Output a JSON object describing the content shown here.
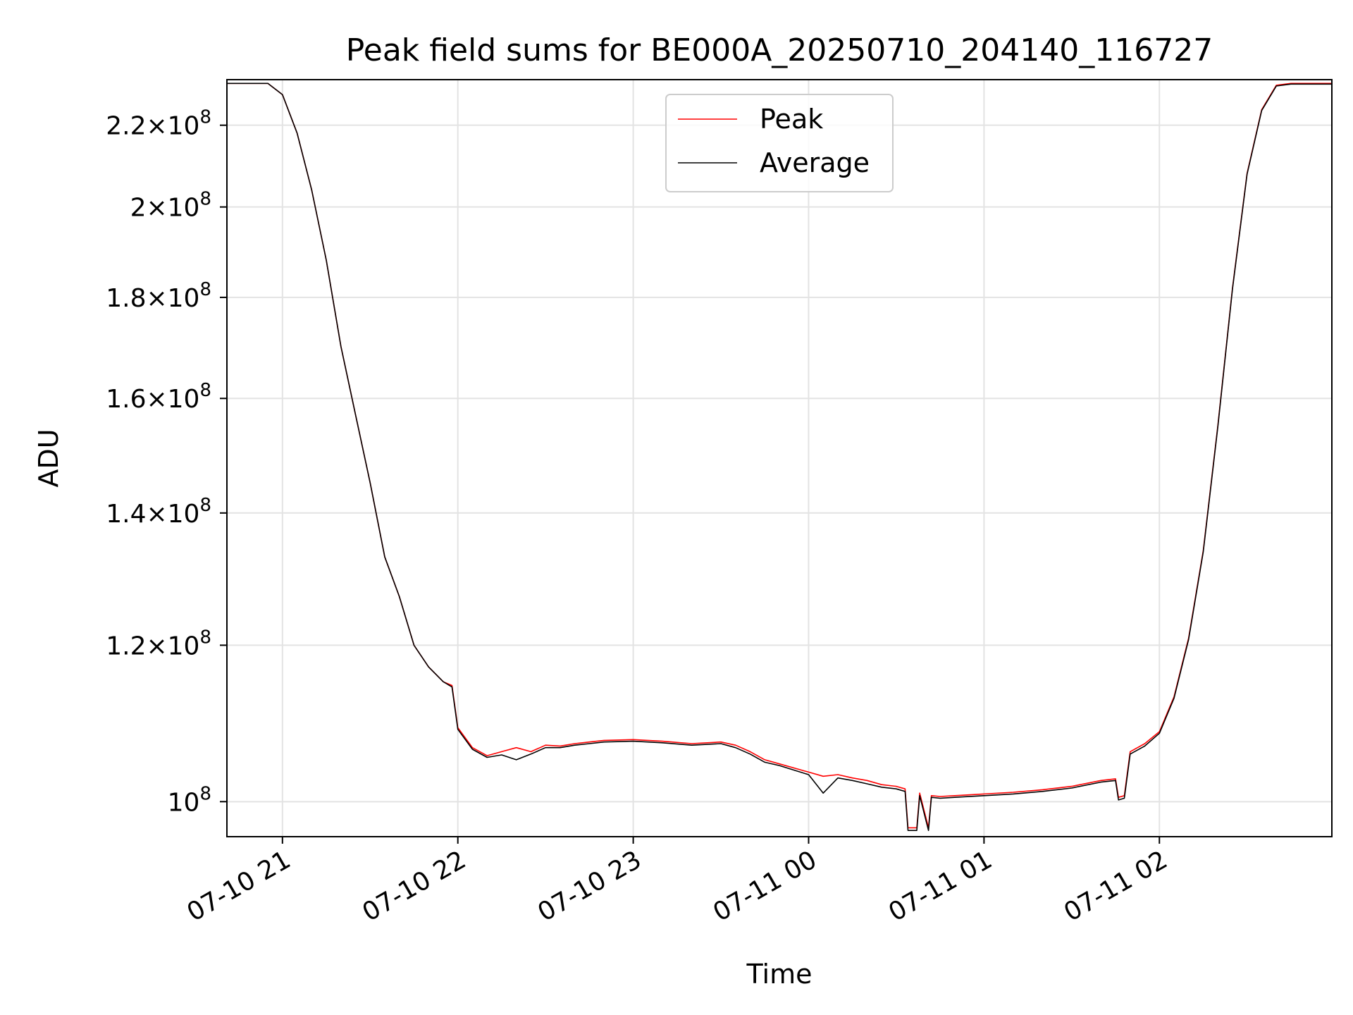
{
  "chart_data": {
    "type": "line",
    "title": "Peak field sums for BE000A_20250710_204140_116727",
    "xlabel": "Time",
    "ylabel": "ADU",
    "y_scale": "log",
    "grid": true,
    "legend_placement": "top-center",
    "x_tick_labels": [
      "07-10 21",
      "07-10 22",
      "07-10 23",
      "07-11 00",
      "07-11 01",
      "07-11 02"
    ],
    "y_ticks": [
      {
        "value": 100000000,
        "mantissa": "",
        "exponent": "8"
      },
      {
        "value": 120000000,
        "mantissa": "1.2",
        "exponent": "8"
      },
      {
        "value": 140000000,
        "mantissa": "1.4",
        "exponent": "8"
      },
      {
        "value": 160000000,
        "mantissa": "1.6",
        "exponent": "8"
      },
      {
        "value": 180000000,
        "mantissa": "1.8",
        "exponent": "8"
      },
      {
        "value": 200000000,
        "mantissa": "2",
        "exponent": "8"
      },
      {
        "value": 220000000,
        "mantissa": "2.2",
        "exponent": "8"
      }
    ],
    "xlim": [
      "2025-07-10 20:41",
      "2025-07-11 02:59"
    ],
    "ylim": [
      96000000,
      232000000
    ],
    "series": [
      {
        "name": "Peak",
        "color": "#ff0000",
        "x": [
          "2025-07-10 20:41",
          "2025-07-10 20:55",
          "2025-07-10 21:00",
          "2025-07-10 21:05",
          "2025-07-10 21:10",
          "2025-07-10 21:15",
          "2025-07-10 21:20",
          "2025-07-10 21:25",
          "2025-07-10 21:30",
          "2025-07-10 21:35",
          "2025-07-10 21:40",
          "2025-07-10 21:45",
          "2025-07-10 21:50",
          "2025-07-10 21:55",
          "2025-07-10 21:58",
          "2025-07-10 22:00",
          "2025-07-10 22:05",
          "2025-07-10 22:10",
          "2025-07-10 22:15",
          "2025-07-10 22:20",
          "2025-07-10 22:25",
          "2025-07-10 22:30",
          "2025-07-10 22:35",
          "2025-07-10 22:40",
          "2025-07-10 22:45",
          "2025-07-10 22:50",
          "2025-07-10 23:00",
          "2025-07-10 23:10",
          "2025-07-10 23:20",
          "2025-07-10 23:30",
          "2025-07-10 23:35",
          "2025-07-10 23:40",
          "2025-07-10 23:45",
          "2025-07-10 23:50",
          "2025-07-11 00:00",
          "2025-07-11 00:05",
          "2025-07-11 00:10",
          "2025-07-11 00:15",
          "2025-07-11 00:20",
          "2025-07-11 00:25",
          "2025-07-11 00:30",
          "2025-07-11 00:33",
          "2025-07-11 00:34",
          "2025-07-11 00:37",
          "2025-07-11 00:38",
          "2025-07-11 00:41",
          "2025-07-11 00:42",
          "2025-07-11 00:45",
          "2025-07-11 00:50",
          "2025-07-11 01:00",
          "2025-07-11 01:10",
          "2025-07-11 01:20",
          "2025-07-11 01:30",
          "2025-07-11 01:40",
          "2025-07-11 01:45",
          "2025-07-11 01:46",
          "2025-07-11 01:48",
          "2025-07-11 01:50",
          "2025-07-11 01:55",
          "2025-07-11 02:00",
          "2025-07-11 02:05",
          "2025-07-11 02:10",
          "2025-07-11 02:15",
          "2025-07-11 02:20",
          "2025-07-11 02:25",
          "2025-07-11 02:30",
          "2025-07-11 02:35",
          "2025-07-11 02:40",
          "2025-07-11 02:45",
          "2025-07-11 02:50",
          "2025-07-11 02:59"
        ],
        "values": [
          231000000,
          231000000,
          228000000,
          218000000,
          204000000,
          188000000,
          170000000,
          157000000,
          145000000,
          133000000,
          127000000,
          120000000,
          117000000,
          115000000,
          114500000,
          109000000,
          106500000,
          105500000,
          106000000,
          106500000,
          106000000,
          106800000,
          106700000,
          107000000,
          107200000,
          107400000,
          107500000,
          107300000,
          107000000,
          107200000,
          106800000,
          106000000,
          105000000,
          104500000,
          103500000,
          103000000,
          103200000,
          102800000,
          102500000,
          102000000,
          101800000,
          101500000,
          97000000,
          97000000,
          101000000,
          97000000,
          100700000,
          100600000,
          100700000,
          100900000,
          101100000,
          101400000,
          101800000,
          102500000,
          102700000,
          100500000,
          100700000,
          106000000,
          107000000,
          108500000,
          113000000,
          121000000,
          134000000,
          155000000,
          182000000,
          208000000,
          224000000,
          230500000,
          231000000,
          231000000,
          231000000
        ]
      },
      {
        "name": "Average",
        "color": "#000000",
        "x": [
          "2025-07-10 20:41",
          "2025-07-10 20:55",
          "2025-07-10 21:00",
          "2025-07-10 21:05",
          "2025-07-10 21:10",
          "2025-07-10 21:15",
          "2025-07-10 21:20",
          "2025-07-10 21:25",
          "2025-07-10 21:30",
          "2025-07-10 21:35",
          "2025-07-10 21:40",
          "2025-07-10 21:45",
          "2025-07-10 21:50",
          "2025-07-10 21:55",
          "2025-07-10 21:58",
          "2025-07-10 22:00",
          "2025-07-10 22:05",
          "2025-07-10 22:10",
          "2025-07-10 22:15",
          "2025-07-10 22:20",
          "2025-07-10 22:25",
          "2025-07-10 22:30",
          "2025-07-10 22:35",
          "2025-07-10 22:40",
          "2025-07-10 22:45",
          "2025-07-10 22:50",
          "2025-07-10 23:00",
          "2025-07-10 23:10",
          "2025-07-10 23:20",
          "2025-07-10 23:30",
          "2025-07-10 23:35",
          "2025-07-10 23:40",
          "2025-07-10 23:45",
          "2025-07-10 23:50",
          "2025-07-11 00:00",
          "2025-07-11 00:05",
          "2025-07-11 00:10",
          "2025-07-11 00:15",
          "2025-07-11 00:20",
          "2025-07-11 00:25",
          "2025-07-11 00:30",
          "2025-07-11 00:33",
          "2025-07-11 00:34",
          "2025-07-11 00:37",
          "2025-07-11 00:38",
          "2025-07-11 00:41",
          "2025-07-11 00:42",
          "2025-07-11 00:45",
          "2025-07-11 00:50",
          "2025-07-11 01:00",
          "2025-07-11 01:10",
          "2025-07-11 01:20",
          "2025-07-11 01:30",
          "2025-07-11 01:40",
          "2025-07-11 01:45",
          "2025-07-11 01:46",
          "2025-07-11 01:48",
          "2025-07-11 01:50",
          "2025-07-11 01:55",
          "2025-07-11 02:00",
          "2025-07-11 02:05",
          "2025-07-11 02:10",
          "2025-07-11 02:15",
          "2025-07-11 02:20",
          "2025-07-11 02:25",
          "2025-07-11 02:30",
          "2025-07-11 02:35",
          "2025-07-11 02:40",
          "2025-07-11 02:45",
          "2025-07-11 02:50",
          "2025-07-11 02:59"
        ],
        "values": [
          231000000,
          231000000,
          228000000,
          218000000,
          204000000,
          188000000,
          170000000,
          157000000,
          145000000,
          133000000,
          127000000,
          120000000,
          117000000,
          115000000,
          114300000,
          108800000,
          106300000,
          105300000,
          105600000,
          105000000,
          105700000,
          106500000,
          106500000,
          106800000,
          107000000,
          107200000,
          107300000,
          107100000,
          106800000,
          107000000,
          106500000,
          105700000,
          104700000,
          104300000,
          103200000,
          101000000,
          102800000,
          102500000,
          102100000,
          101700000,
          101500000,
          101200000,
          96700000,
          96700000,
          100700000,
          96700000,
          100500000,
          100400000,
          100500000,
          100700000,
          100900000,
          101200000,
          101600000,
          102300000,
          102500000,
          100200000,
          100400000,
          105700000,
          106700000,
          108300000,
          112800000,
          120800000,
          133800000,
          154800000,
          181800000,
          207800000,
          223800000,
          230300000,
          230800000,
          230800000,
          230800000
        ]
      }
    ]
  }
}
